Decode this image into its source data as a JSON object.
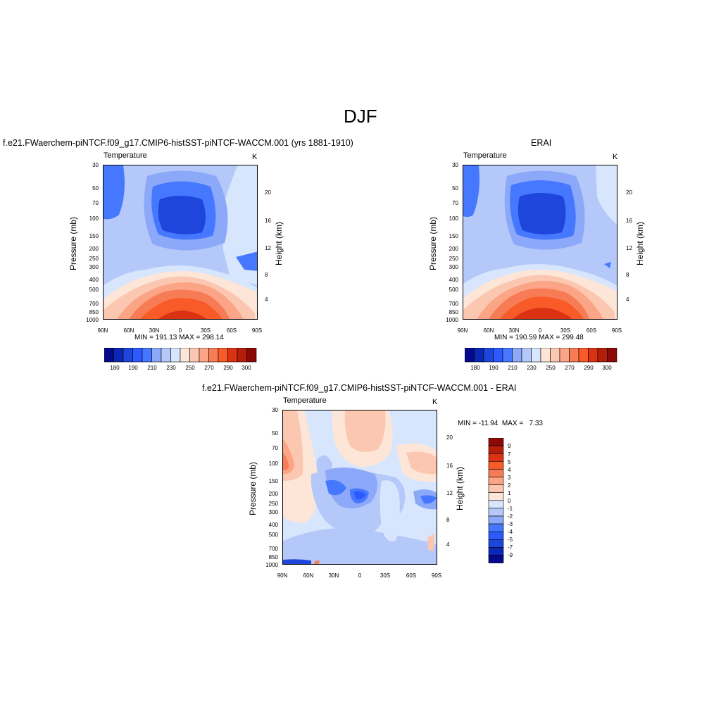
{
  "figure": {
    "title": "DJF",
    "panel1_caption": "f.e21.FWaerchem-piNTCF.f09_g17.CMIP6-histSST-piNTCF-WACCM.001 (yrs 1881-1910)",
    "panel2_caption": "ERAI",
    "panel3_caption": "f.e21.FWaerchem-piNTCF.f09_g17.CMIP6-histSST-piNTCF-WACCM.001 - ERAI"
  },
  "chart_data": [
    {
      "type": "heatmap",
      "title": "Temperature",
      "units": "K",
      "ylabel": "Pressure (mb)",
      "y2label": "Height (km)",
      "x_ticks": [
        "90N",
        "60N",
        "30N",
        "0",
        "30S",
        "60S",
        "90S"
      ],
      "y_ticks": [
        "30",
        "50",
        "70",
        "100",
        "150",
        "200",
        "250",
        "300",
        "400",
        "500",
        "700",
        "850",
        "1000"
      ],
      "y2_ticks": [
        "20",
        "16",
        "12",
        "8",
        "4"
      ],
      "stats": "MIN = 191.13  MAX = 298.14",
      "colorbar_labels": [
        "180",
        "190",
        "210",
        "230",
        "250",
        "270",
        "290",
        "300"
      ],
      "min": 191.13,
      "max": 298.14
    },
    {
      "type": "heatmap",
      "title": "Temperature",
      "units": "K",
      "ylabel": "Pressure (mb)",
      "y2label": "Height (km)",
      "x_ticks": [
        "90N",
        "60N",
        "30N",
        "0",
        "30S",
        "60S",
        "90S"
      ],
      "y_ticks": [
        "30",
        "50",
        "70",
        "100",
        "150",
        "200",
        "250",
        "300",
        "400",
        "500",
        "700",
        "850",
        "1000"
      ],
      "y2_ticks": [
        "20",
        "16",
        "12",
        "8",
        "4"
      ],
      "stats": "MIN = 190.59  MAX = 299.48",
      "colorbar_labels": [
        "180",
        "190",
        "210",
        "230",
        "250",
        "270",
        "290",
        "300"
      ],
      "min": 190.59,
      "max": 299.48
    },
    {
      "type": "heatmap",
      "title": "Temperature",
      "units": "K",
      "ylabel": "Pressure (mb)",
      "y2label": "Height (km)",
      "x_ticks": [
        "90N",
        "60N",
        "30N",
        "0",
        "30S",
        "60S",
        "90S"
      ],
      "y_ticks": [
        "30",
        "50",
        "70",
        "100",
        "150",
        "200",
        "250",
        "300",
        "400",
        "500",
        "700",
        "850",
        "1000"
      ],
      "y2_ticks": [
        "20",
        "16",
        "12",
        "8",
        "4"
      ],
      "stats": "MIN = -11.94  MAX =   7.33",
      "colorbar_labels": [
        "9",
        "7",
        "5",
        "4",
        "3",
        "2",
        "1",
        "0",
        "-1",
        "-2",
        "-3",
        "-4",
        "-5",
        "-7",
        "-9"
      ],
      "min": -11.94,
      "max": 7.33
    }
  ],
  "colors": {
    "abs_palette": [
      "#050a8c",
      "#0a28b4",
      "#1e46dc",
      "#2d5aff",
      "#4678ff",
      "#8ca8f8",
      "#b4c8fa",
      "#d7e6fd",
      "#fde6d7",
      "#fcc7b0",
      "#fba586",
      "#f77b55",
      "#f85a28",
      "#dc3214",
      "#b41e0a",
      "#8c0a05"
    ],
    "diff_palette": [
      "#8c0a05",
      "#b41e0a",
      "#dc3214",
      "#f85a28",
      "#f77b55",
      "#fba586",
      "#fcc7b0",
      "#fde6d7",
      "#d7e6fd",
      "#b4c8fa",
      "#8ca8f8",
      "#4678ff",
      "#2d5aff",
      "#1e46dc",
      "#0a28b4",
      "#050a8c"
    ]
  }
}
